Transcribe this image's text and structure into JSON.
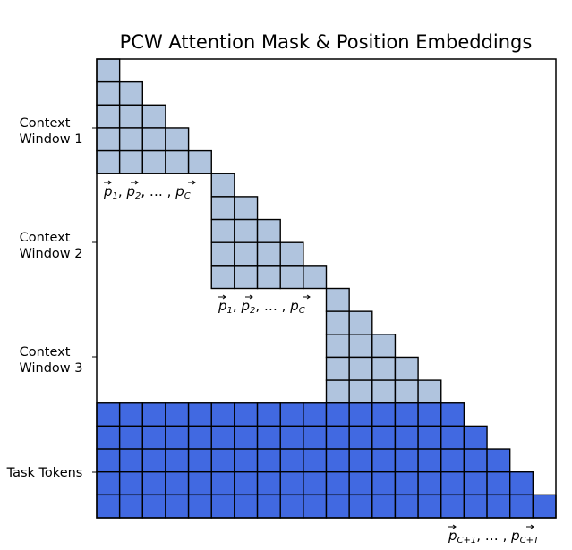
{
  "title": "PCW Attention Mask & Position Embeddings",
  "context_window_size": 5,
  "task_token_count": 5,
  "colors": {
    "context_cell": "#b0c4de",
    "task_cell": "#4169e1",
    "grid_line": "#000000",
    "background": "#ffffff"
  },
  "context_windows": [
    {
      "label_line1": "Context",
      "label_line2": "Window 1",
      "positions": {
        "p1": "p",
        "s1": "1",
        "sep1": ", ",
        "p2": "p",
        "s2": "2",
        "dots": ", … , ",
        "pc": "p",
        "sc": "C"
      }
    },
    {
      "label_line1": "Context",
      "label_line2": "Window 2",
      "positions": {
        "p1": "p",
        "s1": "1",
        "sep1": ", ",
        "p2": "p",
        "s2": "2",
        "dots": ", … , ",
        "pc": "p",
        "sc": "C"
      }
    },
    {
      "label_line1": "Context",
      "label_line2": "Window 3",
      "positions": {
        "p1": "p",
        "s1": "1",
        "sep1": ", ",
        "p2": "p",
        "s2": "2",
        "dots": ", … , ",
        "pc": "p",
        "sc": "C"
      }
    }
  ],
  "task": {
    "label": "Task Tokens",
    "positions": {
      "pa": "p",
      "sa": "C+1",
      "dots": ", … , ",
      "pb": "p",
      "sb": "C+T"
    }
  }
}
